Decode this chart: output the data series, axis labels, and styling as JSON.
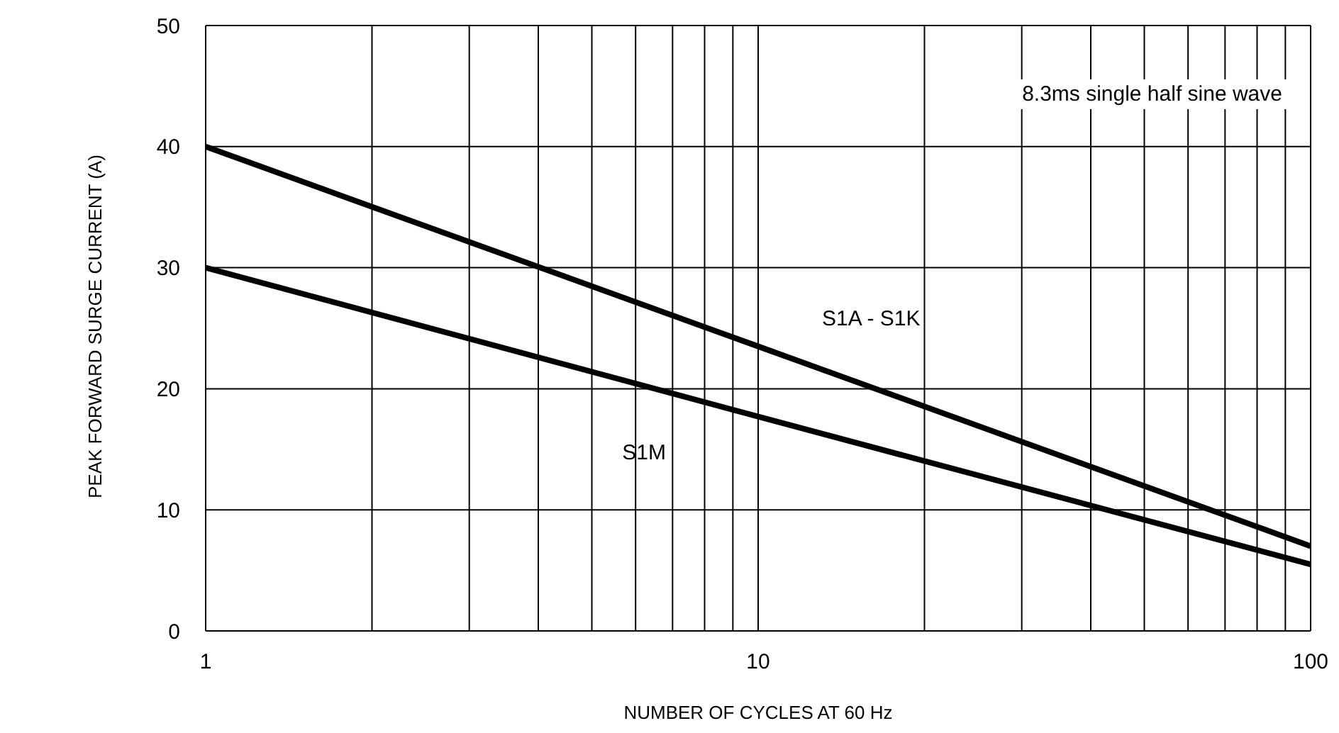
{
  "chart_data": {
    "type": "line",
    "xlabel": "NUMBER OF CYCLES AT 60 Hz",
    "ylabel": "PEAK FORWARD SURGE CURRENT (A)",
    "annotations": [
      "8.3ms single half sine wave"
    ],
    "x": [
      1,
      10,
      100
    ],
    "series": [
      {
        "name": "S1A - S1K",
        "color": "#000000",
        "values": [
          40,
          23.5,
          7
        ]
      },
      {
        "name": "S1M",
        "color": "#000000",
        "values": [
          30,
          17.7,
          5.5
        ]
      }
    ],
    "log": "x",
    "xlim": [
      1,
      100
    ],
    "xticks": [
      1,
      {
        "value": 2,
        "label": null
      },
      {
        "value": 3,
        "label": null
      },
      {
        "value": 4,
        "label": null
      },
      {
        "value": 5,
        "label": null
      },
      {
        "value": 6,
        "label": null
      },
      {
        "value": 7,
        "label": null
      },
      {
        "value": 8,
        "label": null
      },
      {
        "value": 9,
        "label": null
      },
      10,
      {
        "value": 20,
        "label": null
      },
      {
        "value": 30,
        "label": null
      },
      {
        "value": 40,
        "label": null
      },
      {
        "value": 50,
        "label": null
      },
      {
        "value": 60,
        "label": null
      },
      {
        "value": 70,
        "label": null
      },
      {
        "value": 80,
        "label": null
      },
      {
        "value": 90,
        "label": null
      },
      100
    ],
    "ylim": [
      0,
      50
    ],
    "yticks": [
      0,
      10,
      20,
      30,
      40,
      50
    ],
    "grid": true,
    "legend": false,
    "marker": "none",
    "line_style": "solid"
  }
}
